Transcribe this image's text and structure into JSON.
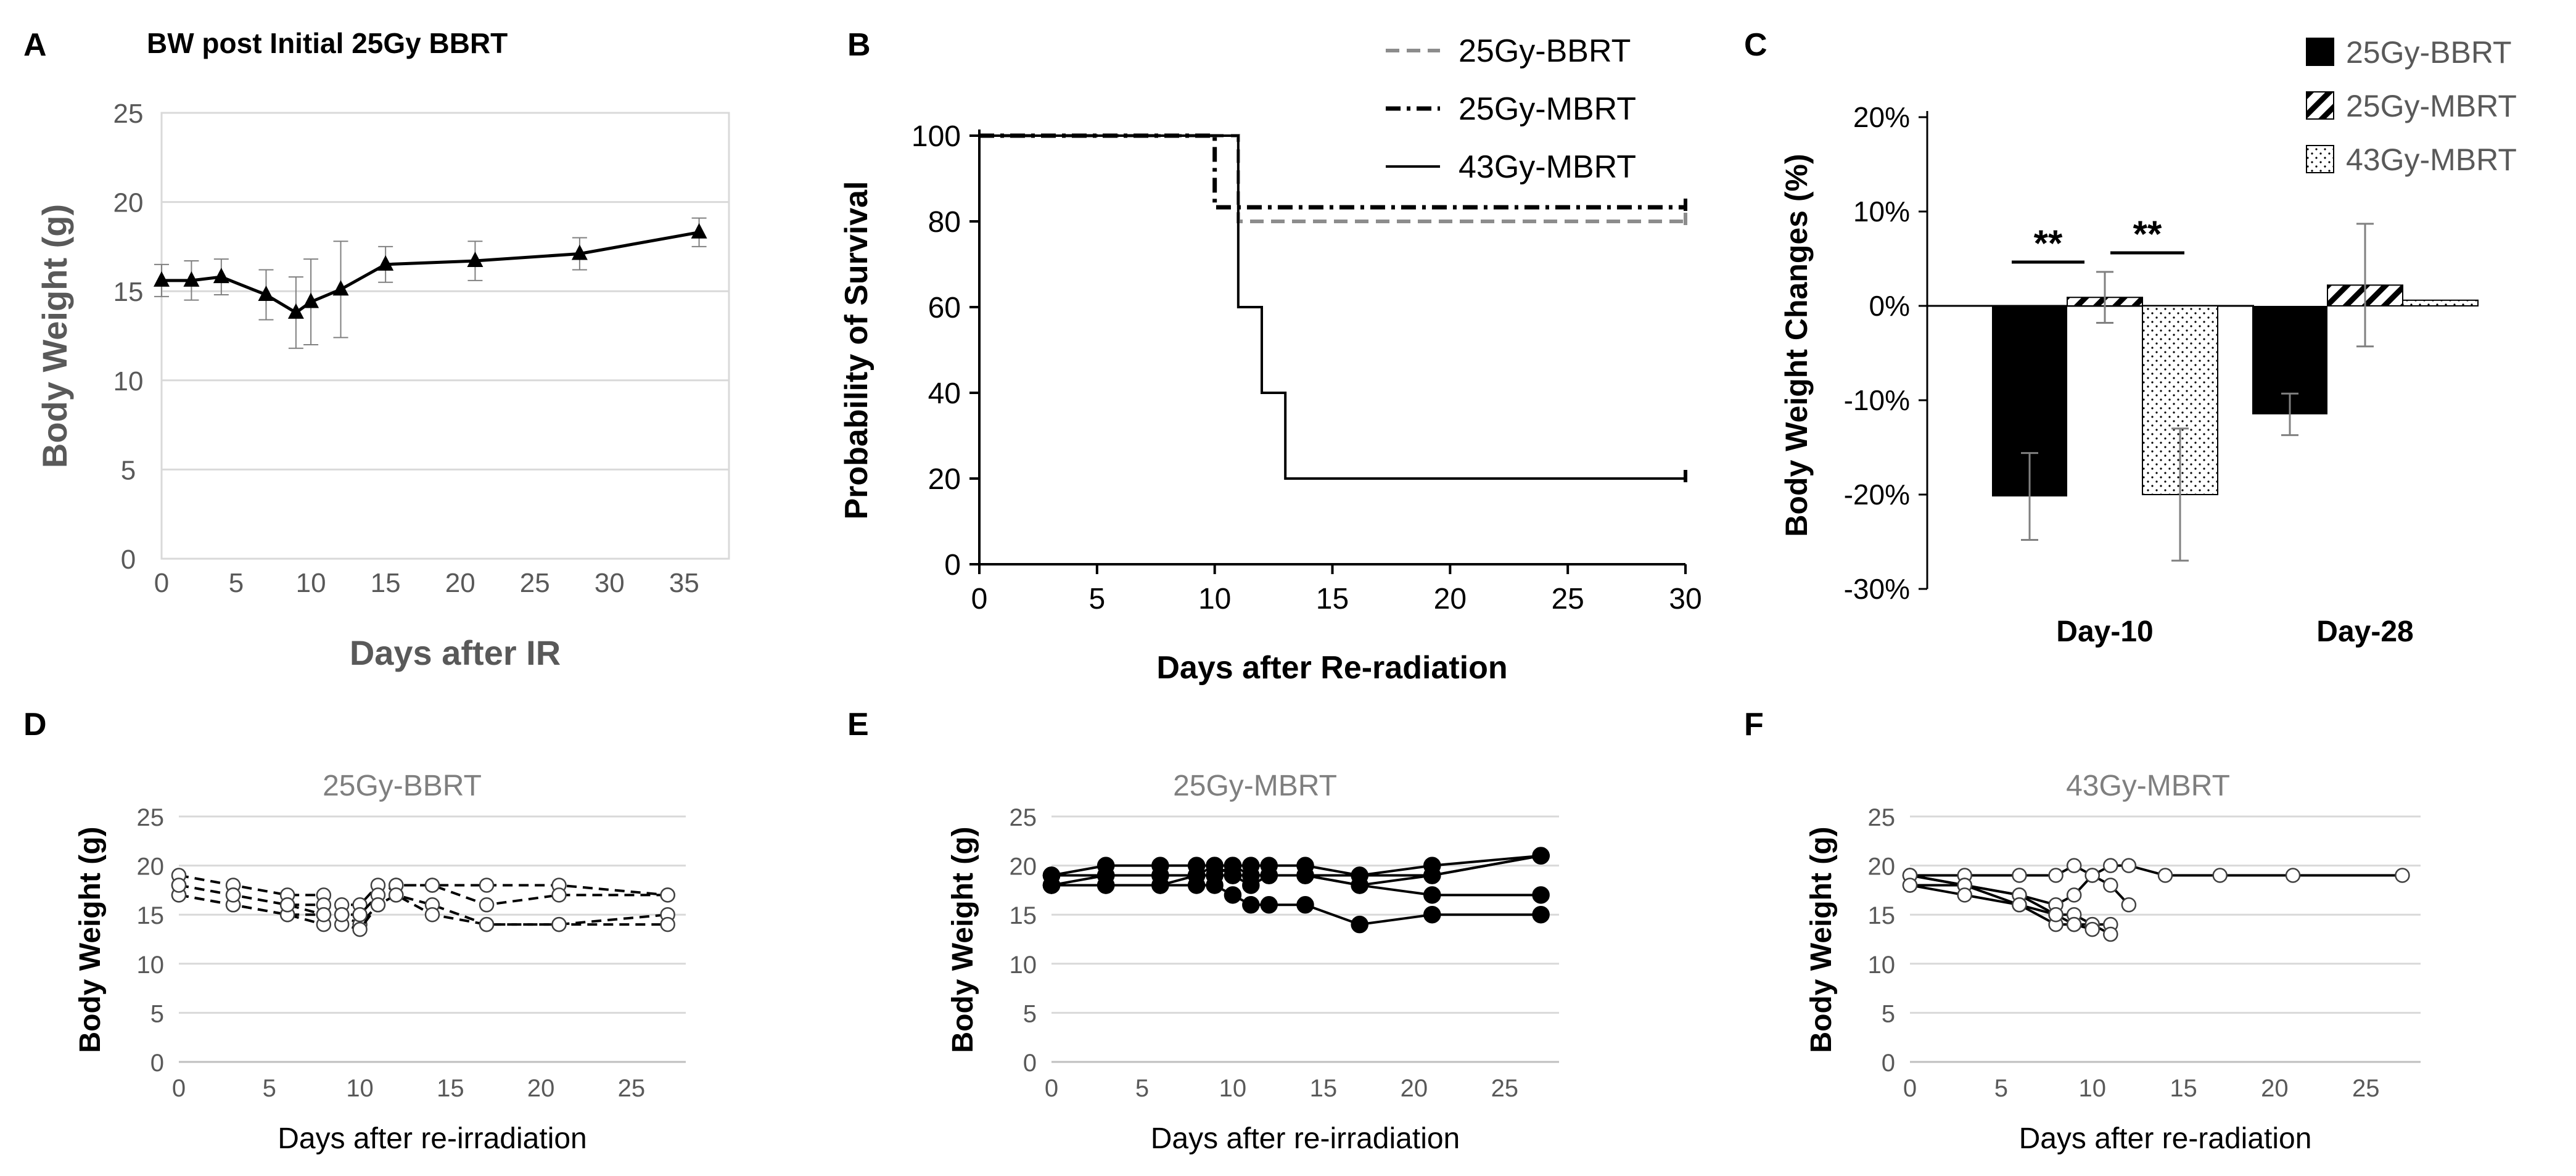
{
  "colors": {
    "axis": "#404040",
    "grid": "#d9d9d9",
    "dark": "#000000",
    "gray_dash": "#8c8c8c",
    "tick_gray": "#595959",
    "title_gray": "#7f7f7f"
  },
  "panels": {
    "A": {
      "letter": "A",
      "title": "BW post  Initial 25Gy BBRT"
    },
    "B": {
      "letter": "B"
    },
    "C": {
      "letter": "C"
    },
    "D": {
      "letter": "D",
      "title": "25Gy-BBRT"
    },
    "E": {
      "letter": "E",
      "title": "25Gy-MBRT"
    },
    "F": {
      "letter": "F",
      "title": "43Gy-MBRT"
    }
  },
  "chart_data": [
    {
      "id": "A",
      "type": "line",
      "title": "BW post  Initial 25Gy BBRT",
      "xlabel": "Days after IR",
      "ylabel": "Body Weight (g)",
      "xlim": [
        0,
        38
      ],
      "ylim": [
        0,
        25
      ],
      "xticks": [
        0,
        5,
        10,
        15,
        20,
        25,
        30,
        35
      ],
      "yticks": [
        0,
        5,
        10,
        15,
        20,
        25
      ],
      "grid": "horizontal",
      "marker": "triangle",
      "x": [
        0,
        2,
        4,
        7,
        9,
        10,
        12,
        15,
        21,
        28,
        36
      ],
      "y": [
        15.6,
        15.6,
        15.8,
        14.8,
        13.8,
        14.4,
        15.1,
        16.5,
        16.7,
        17.1,
        18.3
      ],
      "err": [
        0.9,
        1.1,
        1.0,
        1.4,
        2.0,
        2.4,
        2.7,
        1.0,
        1.1,
        0.9,
        0.8
      ]
    },
    {
      "id": "B",
      "type": "line",
      "subtype": "kaplan-meier",
      "xlabel": "Days after  Re-radiation",
      "ylabel": "Probability of Survival",
      "xlim": [
        0,
        30
      ],
      "ylim": [
        0,
        100
      ],
      "xticks": [
        0,
        5,
        10,
        15,
        20,
        25,
        30
      ],
      "yticks": [
        0,
        20,
        40,
        60,
        80,
        100
      ],
      "legend": "top-right",
      "series": [
        {
          "name": "25Gy-BBRT",
          "style": "dashed-gray",
          "x": [
            0,
            11,
            11,
            30
          ],
          "y": [
            100,
            100,
            80,
            80
          ]
        },
        {
          "name": "25Gy-MBRT",
          "style": "dash-dot",
          "x": [
            0,
            10,
            10,
            30
          ],
          "y": [
            100,
            100,
            83.3,
            83.3
          ]
        },
        {
          "name": "43Gy-MBRT",
          "style": "solid",
          "x": [
            0,
            11,
            11,
            12,
            12,
            13,
            13,
            30
          ],
          "y": [
            100,
            100,
            60,
            60,
            40,
            40,
            20,
            20
          ]
        }
      ]
    },
    {
      "id": "C",
      "type": "bar",
      "ylabel": "Body Weight Changes (%)",
      "ylim": [
        -30,
        20
      ],
      "yticks": [
        -30,
        -20,
        -10,
        0,
        10,
        20
      ],
      "ytick_labels": [
        "-30%",
        "-20%",
        "-10%",
        "0%",
        "10%",
        "20%"
      ],
      "categories": [
        "Day-10",
        "Day-28"
      ],
      "legend": "top-right",
      "series": [
        {
          "name": "25Gy-BBRT",
          "pattern": "solid",
          "values": [
            -20.2,
            -11.5
          ],
          "err": [
            4.6,
            2.2
          ]
        },
        {
          "name": "25Gy-MBRT",
          "pattern": "hatch",
          "values": [
            0.9,
            2.2
          ],
          "err": [
            2.7,
            6.5
          ]
        },
        {
          "name": "43Gy-MBRT",
          "pattern": "dots",
          "values": [
            -20.0,
            0.6
          ],
          "err": [
            7.0,
            0
          ]
        }
      ],
      "significance": [
        "**",
        "**"
      ]
    },
    {
      "id": "D",
      "type": "line",
      "title": "25Gy-BBRT",
      "xlabel": "Days after re-irradiation",
      "ylabel": "Body Weight (g)",
      "xlim": [
        0,
        28
      ],
      "ylim": [
        0,
        25
      ],
      "xticks": [
        0,
        5,
        10,
        15,
        20,
        25
      ],
      "yticks": [
        0,
        5,
        10,
        15,
        20,
        25
      ],
      "grid": "horizontal",
      "marker": "open-circle",
      "line": "dashed",
      "series": [
        {
          "x": [
            0,
            3,
            6,
            8,
            9,
            10,
            11,
            12,
            14,
            17,
            21,
            27
          ],
          "y": [
            19,
            18,
            17,
            17,
            16,
            16,
            18,
            18,
            18,
            18,
            18,
            17
          ]
        },
        {
          "x": [
            0,
            3,
            6,
            8,
            9,
            10,
            11,
            12,
            14,
            17,
            21,
            27
          ],
          "y": [
            18,
            17,
            16,
            16,
            15,
            15,
            17,
            18,
            18,
            16,
            17,
            17
          ]
        },
        {
          "x": [
            0,
            3,
            6,
            8,
            9,
            10,
            11,
            12,
            14,
            17,
            21,
            27
          ],
          "y": [
            17,
            16,
            15,
            15,
            15,
            14,
            16,
            17,
            16,
            14,
            14,
            15
          ]
        },
        {
          "x": [
            0,
            3,
            6,
            8,
            9,
            10,
            11,
            12,
            14,
            17,
            21,
            27
          ],
          "y": [
            17,
            16,
            15,
            14,
            14,
            13.5,
            16,
            17,
            15,
            14,
            14,
            14
          ]
        },
        {
          "x": [
            0,
            3,
            6,
            8,
            9,
            10
          ],
          "y": [
            18,
            17,
            16,
            15,
            15,
            15
          ]
        }
      ]
    },
    {
      "id": "E",
      "type": "line",
      "title": "25Gy-MBRT",
      "xlabel": "Days after re-irradiation",
      "ylabel": "Body Weight (g)",
      "xlim": [
        0,
        28
      ],
      "ylim": [
        0,
        25
      ],
      "xticks": [
        0,
        5,
        10,
        15,
        20,
        25
      ],
      "yticks": [
        0,
        5,
        10,
        15,
        20,
        25
      ],
      "grid": "horizontal",
      "marker": "filled-circle",
      "line": "solid",
      "series": [
        {
          "x": [
            0,
            3,
            6,
            8,
            9,
            10,
            11,
            12,
            14,
            17,
            21,
            27
          ],
          "y": [
            19,
            20,
            20,
            20,
            20,
            20,
            20,
            20,
            20,
            19,
            20,
            21
          ]
        },
        {
          "x": [
            0,
            3,
            6,
            8,
            9,
            10,
            11,
            12,
            14,
            17,
            21,
            27
          ],
          "y": [
            19,
            19,
            19,
            19,
            20,
            19,
            19,
            19,
            19,
            19,
            19,
            21
          ]
        },
        {
          "x": [
            0,
            3,
            6,
            8,
            9,
            10,
            11,
            12,
            14,
            17,
            21,
            27
          ],
          "y": [
            18,
            19,
            19,
            19,
            19,
            20,
            19,
            19,
            19,
            18,
            17,
            17
          ]
        },
        {
          "x": [
            0,
            3,
            6,
            8,
            9,
            10,
            11,
            12,
            14,
            17,
            21,
            27
          ],
          "y": [
            18,
            18,
            18,
            18,
            18,
            17,
            16,
            16,
            16,
            14,
            15,
            15
          ]
        },
        {
          "x": [
            0,
            3,
            6,
            8,
            9,
            10,
            11,
            12,
            14,
            17,
            21,
            27
          ],
          "y": [
            18,
            18,
            18,
            19,
            19,
            19,
            18,
            19,
            19,
            18,
            19,
            21
          ]
        },
        {
          "x": [
            0,
            3,
            6,
            8,
            9,
            10
          ],
          "y": [
            19,
            19,
            19,
            19,
            19,
            19
          ]
        }
      ]
    },
    {
      "id": "F",
      "type": "line",
      "title": "43Gy-MBRT",
      "xlabel": "Days after re-radiation",
      "ylabel": "Body Weight (g)",
      "xlim": [
        0,
        28
      ],
      "ylim": [
        0,
        25
      ],
      "xticks": [
        0,
        5,
        10,
        15,
        20,
        25
      ],
      "yticks": [
        0,
        5,
        10,
        15,
        20,
        25
      ],
      "grid": "horizontal",
      "marker": "open-circle",
      "line": "solid",
      "series": [
        {
          "x": [
            0,
            3,
            6,
            8,
            9,
            10,
            11,
            12,
            14,
            17,
            21,
            27
          ],
          "y": [
            19,
            19,
            19,
            19,
            20,
            19,
            20,
            20,
            19,
            19,
            19,
            19
          ]
        },
        {
          "x": [
            0,
            3,
            6,
            8,
            9,
            10,
            11,
            12
          ],
          "y": [
            19,
            18,
            17,
            16,
            17,
            19,
            18,
            16
          ]
        },
        {
          "x": [
            0,
            3,
            6,
            8,
            9,
            10,
            11
          ],
          "y": [
            18,
            18,
            17,
            15,
            15,
            14,
            14
          ]
        },
        {
          "x": [
            0,
            3,
            6,
            8,
            9,
            10,
            11
          ],
          "y": [
            19,
            18,
            16,
            14,
            14,
            14,
            13
          ]
        },
        {
          "x": [
            0,
            3,
            6,
            8,
            9,
            10
          ],
          "y": [
            18,
            17,
            16,
            15,
            14,
            13.5
          ]
        }
      ]
    }
  ]
}
